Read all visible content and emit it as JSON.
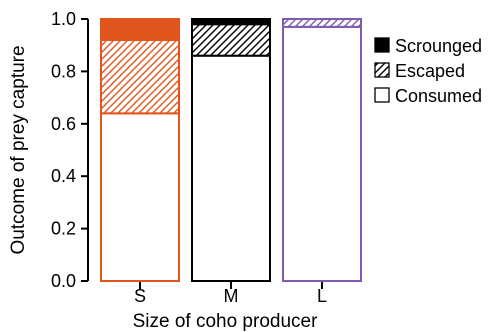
{
  "chart_data": {
    "type": "bar",
    "stacked": true,
    "title": "",
    "xlabel": "Size of coho producer",
    "ylabel": "Outcome of prey capture",
    "ylim": [
      0,
      1
    ],
    "yticks": [
      "0.0",
      "0.2",
      "0.4",
      "0.6",
      "0.8",
      "1.0"
    ],
    "categories": [
      "S",
      "M",
      "L"
    ],
    "bar_colors": [
      "#e2561d",
      "#000000",
      "#7e5bb0"
    ],
    "legend_position": "top-right",
    "series": [
      {
        "name": "Consumed",
        "fill": "hollow",
        "values": [
          0.64,
          0.86,
          0.97
        ]
      },
      {
        "name": "Escaped",
        "fill": "hatched",
        "values": [
          0.28,
          0.12,
          0.03
        ]
      },
      {
        "name": "Scrounged",
        "fill": "solid",
        "values": [
          0.08,
          0.02,
          0.0
        ]
      }
    ],
    "legend_order": [
      "Scrounged",
      "Escaped",
      "Consumed"
    ]
  }
}
